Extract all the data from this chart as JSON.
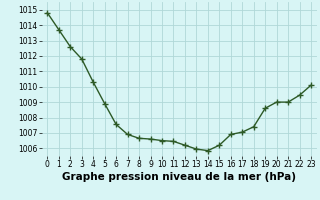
{
  "x": [
    0,
    1,
    2,
    3,
    4,
    5,
    6,
    7,
    8,
    9,
    10,
    11,
    12,
    13,
    14,
    15,
    16,
    17,
    18,
    19,
    20,
    21,
    22,
    23
  ],
  "y": [
    1014.8,
    1013.7,
    1012.6,
    1011.8,
    1010.3,
    1008.9,
    1007.55,
    1006.9,
    1006.65,
    1006.6,
    1006.5,
    1006.45,
    1006.2,
    1005.95,
    1005.85,
    1006.2,
    1006.9,
    1007.05,
    1007.4,
    1008.6,
    1009.0,
    1009.0,
    1009.45,
    1010.1
  ],
  "line_color": "#2d5a27",
  "marker": "+",
  "marker_size": 4,
  "bg_color": "#d8f5f5",
  "grid_color": "#b0d8d8",
  "xlabel": "Graphe pression niveau de la mer (hPa)",
  "xlabel_fontsize": 7.5,
  "ylim": [
    1005.5,
    1015.5
  ],
  "yticks": [
    1006,
    1007,
    1008,
    1009,
    1010,
    1011,
    1012,
    1013,
    1014,
    1015
  ],
  "xticks": [
    0,
    1,
    2,
    3,
    4,
    5,
    6,
    7,
    8,
    9,
    10,
    11,
    12,
    13,
    14,
    15,
    16,
    17,
    18,
    19,
    20,
    21,
    22,
    23
  ],
  "tick_fontsize": 5.5,
  "line_width": 1.0,
  "xlim": [
    -0.5,
    23.5
  ]
}
